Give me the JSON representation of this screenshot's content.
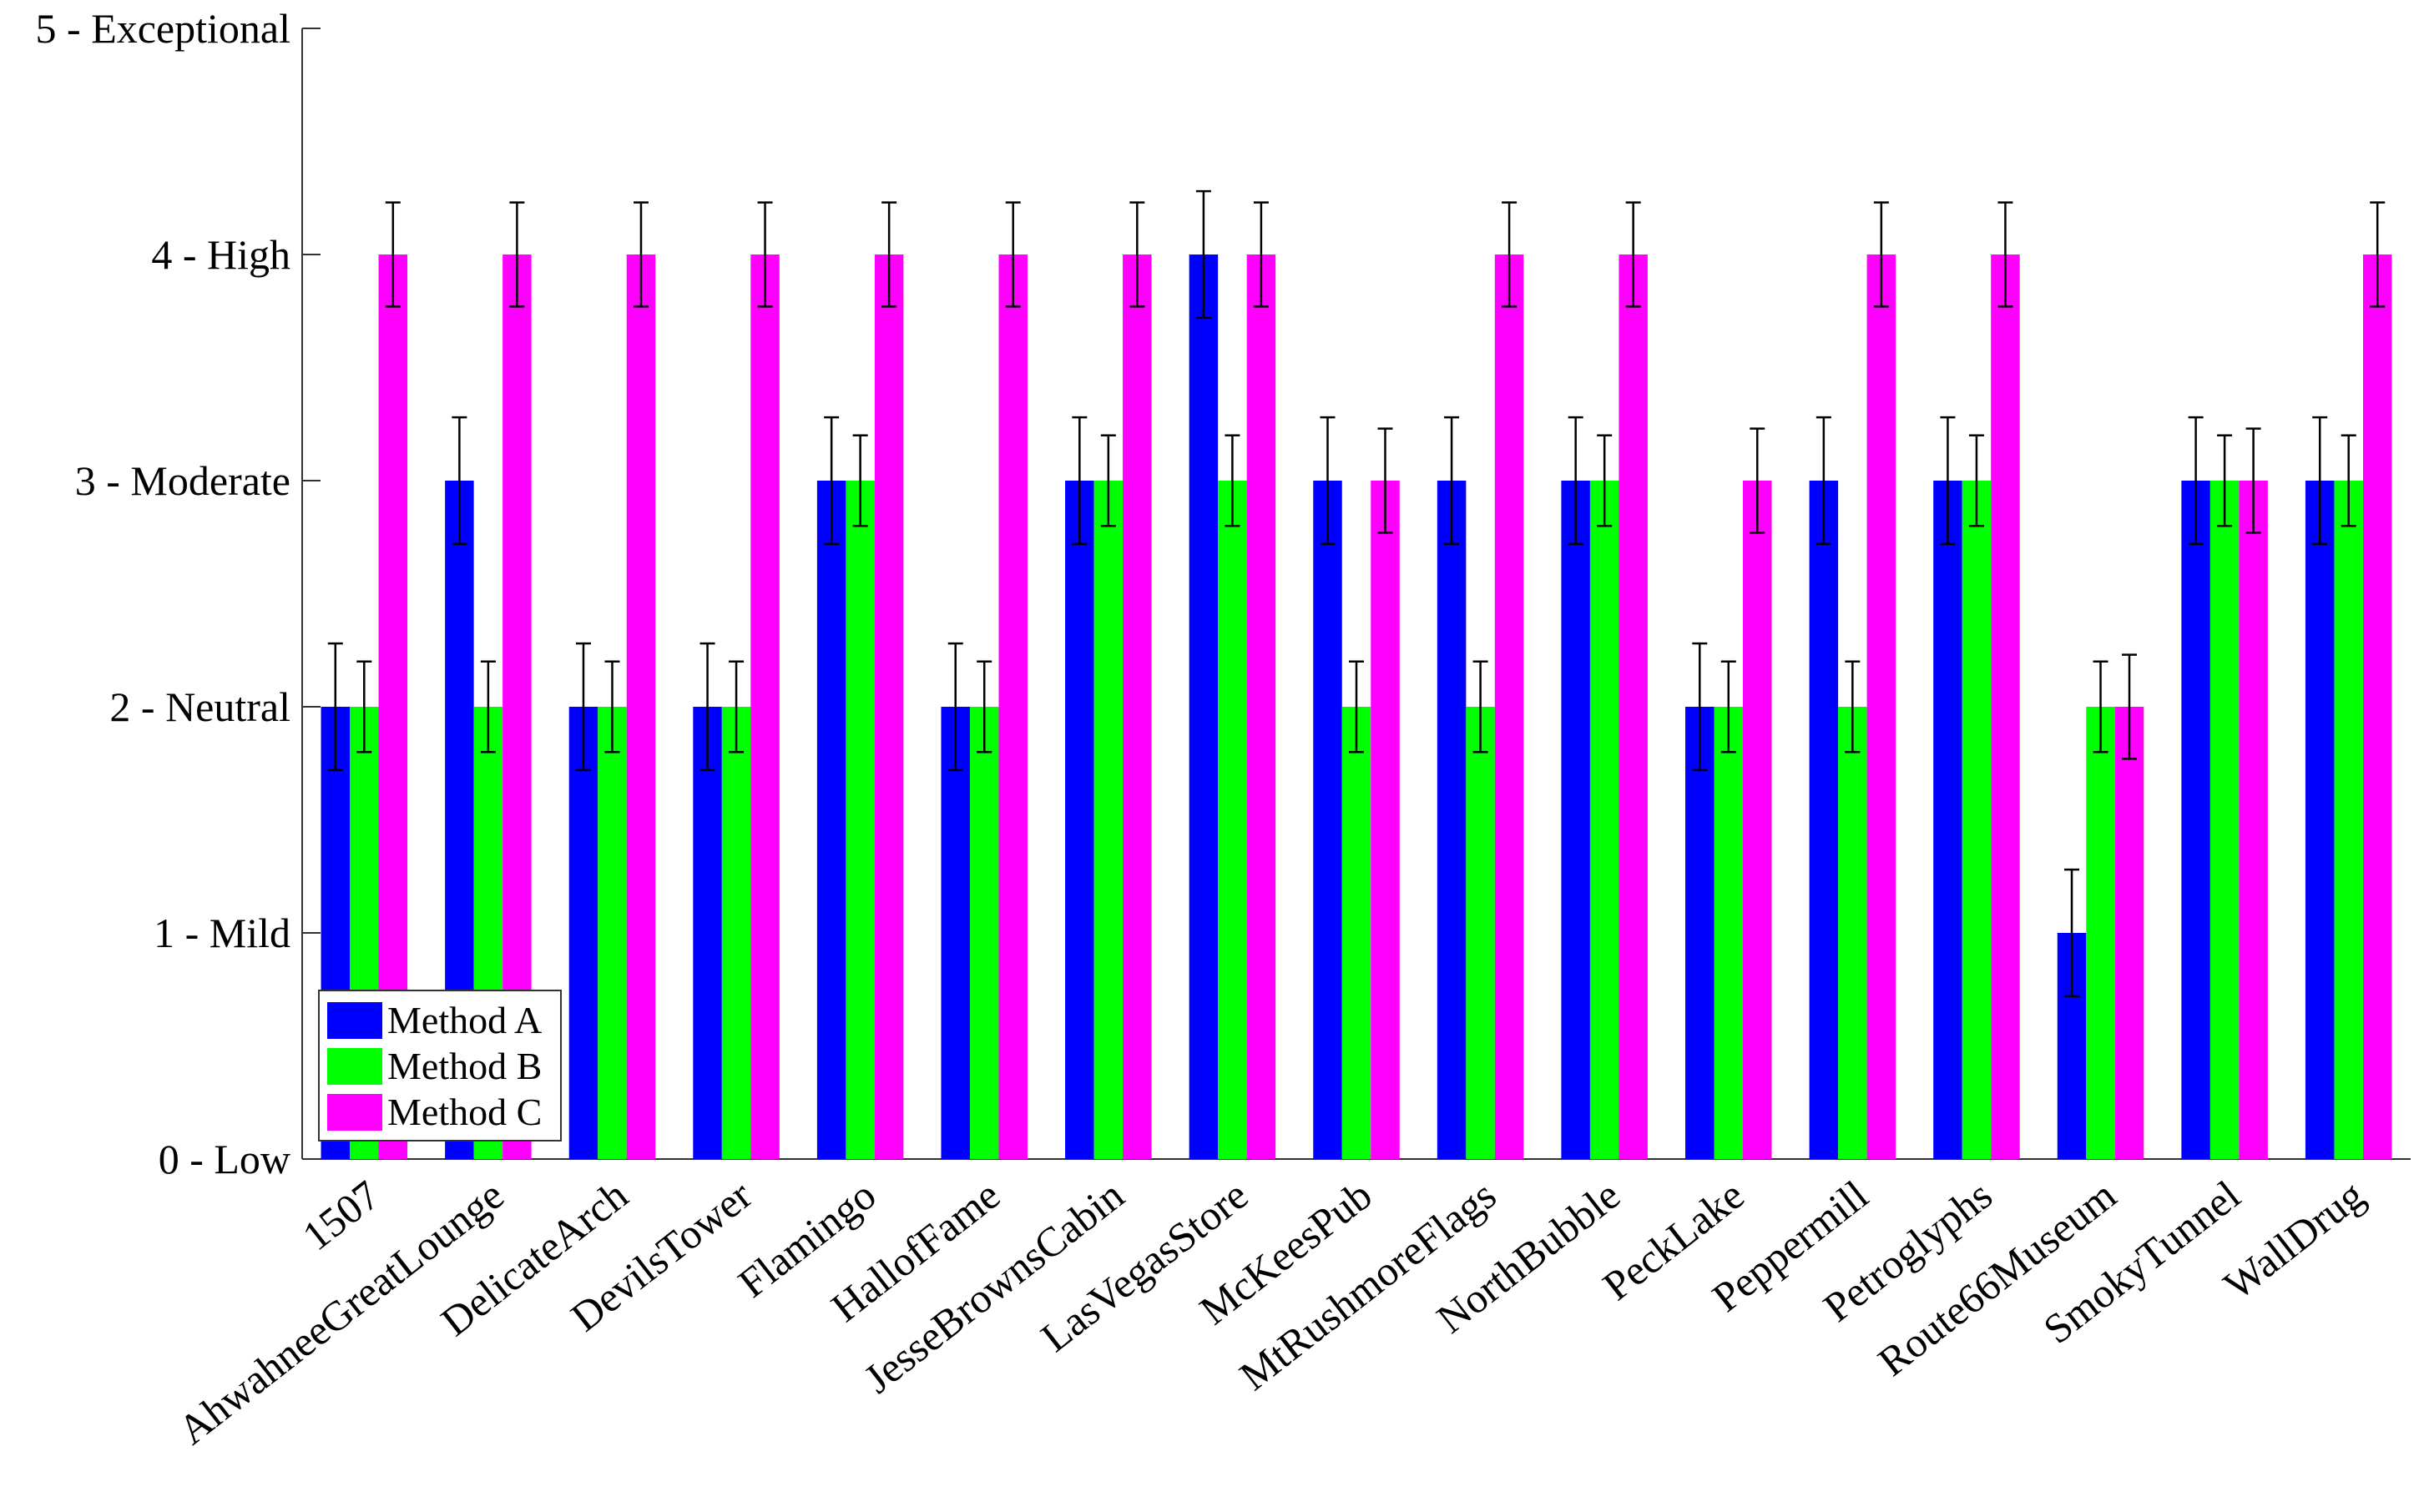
{
  "chart_data": {
    "type": "bar",
    "title": "",
    "xlabel": "",
    "ylabel": "",
    "ylim": [
      0,
      5
    ],
    "yticks": [
      {
        "value": 0,
        "label": "0 - Low"
      },
      {
        "value": 1,
        "label": "1 - Mild"
      },
      {
        "value": 2,
        "label": "2 - Neutral"
      },
      {
        "value": 3,
        "label": "3 - Moderate"
      },
      {
        "value": 4,
        "label": "4 - High"
      },
      {
        "value": 5,
        "label": "5 - Exceptional"
      }
    ],
    "categories": [
      "1507",
      "AhwahneeGreatLounge",
      "DelicateArch",
      "DevilsTower",
      "Flamingo",
      "HallofFame",
      "JesseBrownsCabin",
      "LasVegasStore",
      "McKeesPub",
      "MtRushmoreFlags",
      "NorthBubble",
      "PeckLake",
      "Peppermill",
      "Petroglyphs",
      "Route66Museum",
      "SmokyTunnel",
      "WallDrug"
    ],
    "series": [
      {
        "name": "Method A",
        "color": "#0000ff",
        "values": [
          2,
          3,
          2,
          2,
          3,
          2,
          3,
          4,
          3,
          3,
          3,
          2,
          3,
          3,
          1,
          3,
          3
        ],
        "error": [
          0.28,
          0.28,
          0.28,
          0.28,
          0.28,
          0.28,
          0.28,
          0.28,
          0.28,
          0.28,
          0.28,
          0.28,
          0.28,
          0.28,
          0.28,
          0.28,
          0.28
        ]
      },
      {
        "name": "Method B",
        "color": "#00ff00",
        "values": [
          2,
          2,
          2,
          2,
          3,
          2,
          3,
          3,
          2,
          2,
          3,
          2,
          2,
          3,
          2,
          3,
          3
        ],
        "error": [
          0.2,
          0.2,
          0.2,
          0.2,
          0.2,
          0.2,
          0.2,
          0.2,
          0.2,
          0.2,
          0.2,
          0.2,
          0.2,
          0.2,
          0.2,
          0.2,
          0.2
        ]
      },
      {
        "name": "Method C",
        "color": "#ff00ff",
        "values": [
          4,
          4,
          4,
          4,
          4,
          4,
          4,
          4,
          3,
          4,
          4,
          3,
          4,
          4,
          2,
          3,
          4
        ],
        "error": [
          0.23,
          0.23,
          0.23,
          0.23,
          0.23,
          0.23,
          0.23,
          0.23,
          0.23,
          0.23,
          0.23,
          0.23,
          0.23,
          0.23,
          0.23,
          0.23,
          0.23
        ]
      }
    ],
    "legend_position": "bottom-left",
    "grid": false
  }
}
